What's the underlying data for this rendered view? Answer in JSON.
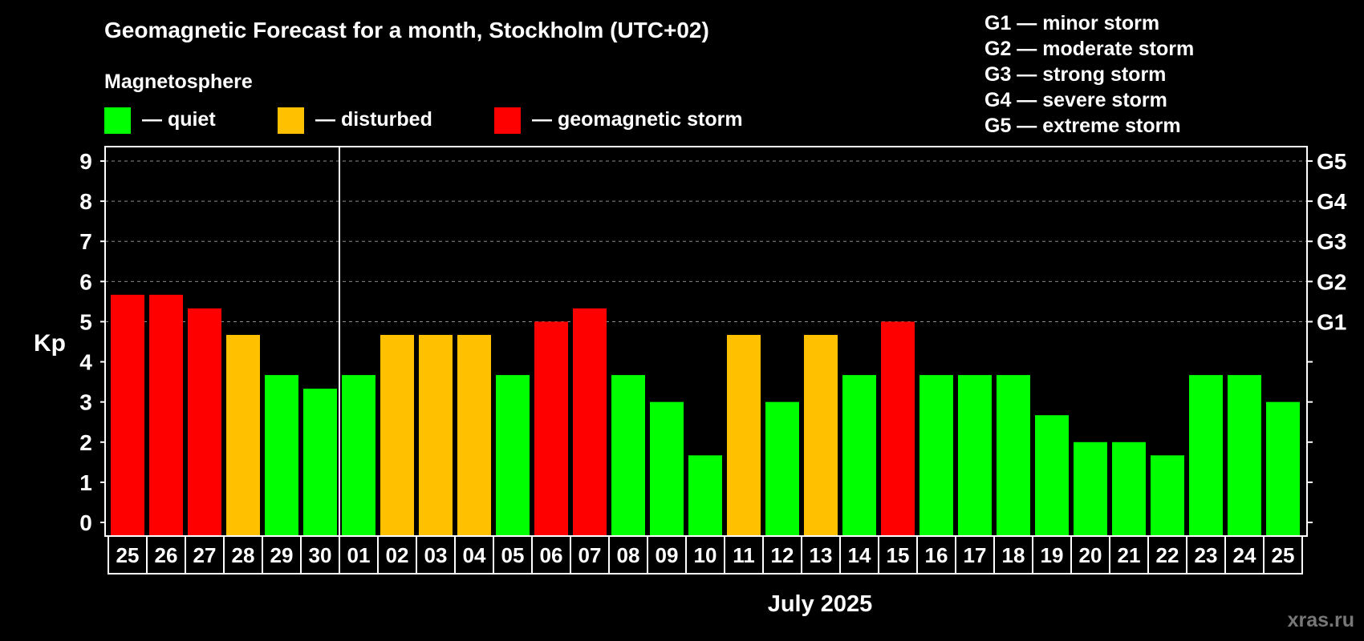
{
  "chart_data": {
    "type": "bar",
    "title": "Geomagnetic Forecast for a month, Stockholm (UTC+02)",
    "legend_title": "Magnetosphere",
    "legend": [
      {
        "key": "quiet",
        "label": "— quiet",
        "color": "#00ff00"
      },
      {
        "key": "disturbed",
        "label": "— disturbed",
        "color": "#ffc000"
      },
      {
        "key": "storm",
        "label": "— geomagnetic storm",
        "color": "#ff0000"
      }
    ],
    "storm_scale": [
      "G1 — minor storm",
      "G2 — moderate storm",
      "G3 — strong storm",
      "G4 — severe storm",
      "G5 — extreme storm"
    ],
    "ylabel": "Kp",
    "ylim": [
      0,
      9
    ],
    "yticks": [
      0,
      1,
      2,
      3,
      4,
      5,
      6,
      7,
      8,
      9
    ],
    "right_ticks": [
      {
        "kp": 5,
        "label": "G1"
      },
      {
        "kp": 6,
        "label": "G2"
      },
      {
        "kp": 7,
        "label": "G3"
      },
      {
        "kp": 8,
        "label": "G4"
      },
      {
        "kp": 9,
        "label": "G5"
      }
    ],
    "xlabel": "July 2025",
    "month_divider_after_index": 5,
    "categories": [
      "25",
      "26",
      "27",
      "28",
      "29",
      "30",
      "01",
      "02",
      "03",
      "04",
      "05",
      "06",
      "07",
      "08",
      "09",
      "10",
      "11",
      "12",
      "13",
      "14",
      "15",
      "16",
      "17",
      "18",
      "19",
      "20",
      "21",
      "22",
      "23",
      "24",
      "25"
    ],
    "values": [
      5.67,
      5.67,
      5.33,
      4.67,
      3.67,
      3.33,
      3.67,
      4.67,
      4.67,
      4.67,
      3.67,
      5.0,
      5.33,
      3.67,
      3.0,
      1.67,
      4.67,
      3.0,
      4.67,
      3.67,
      5.0,
      3.67,
      3.67,
      3.67,
      2.67,
      2.0,
      2.0,
      1.67,
      3.67,
      3.67,
      3.0
    ],
    "levels": [
      "storm",
      "storm",
      "storm",
      "disturbed",
      "quiet",
      "quiet",
      "quiet",
      "disturbed",
      "disturbed",
      "disturbed",
      "quiet",
      "storm",
      "storm",
      "quiet",
      "quiet",
      "quiet",
      "disturbed",
      "quiet",
      "disturbed",
      "quiet",
      "storm",
      "quiet",
      "quiet",
      "quiet",
      "quiet",
      "quiet",
      "quiet",
      "quiet",
      "quiet",
      "quiet",
      "quiet"
    ],
    "grid": true
  },
  "watermark": "xras.ru"
}
